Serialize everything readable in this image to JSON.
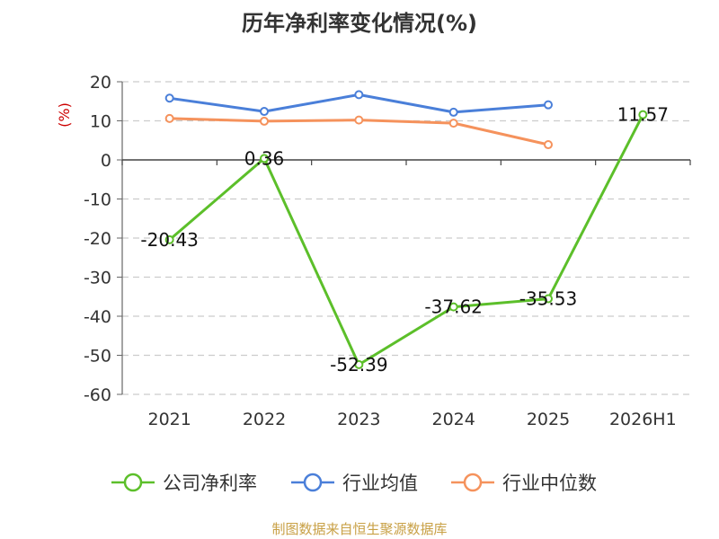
{
  "chart_data": {
    "type": "line",
    "title": "历年净利率变化情况(%)",
    "ylabel": "(%)",
    "xlabel": "",
    "categories": [
      "2021",
      "2022",
      "2023",
      "2024",
      "2025",
      "2026H1"
    ],
    "ylim": [
      -60,
      20
    ],
    "yticks": [
      20,
      10,
      0,
      -10,
      -20,
      -30,
      -40,
      -50,
      -60
    ],
    "grid": true,
    "legend_position": "bottom",
    "series": [
      {
        "name": "公司净利率",
        "color": "#5cbf2a",
        "values": [
          -20.43,
          0.36,
          -52.39,
          -37.62,
          -35.53,
          11.57
        ],
        "labels": [
          "-20.43",
          "0.36",
          "-52.39",
          "-37.62",
          "-35.53",
          "11.57"
        ]
      },
      {
        "name": "行业均值",
        "color": "#4a7fd9",
        "values": [
          15.8,
          12.4,
          16.7,
          12.2,
          14.1,
          null
        ]
      },
      {
        "name": "行业中位数",
        "color": "#f5925c",
        "values": [
          10.6,
          9.9,
          10.2,
          9.4,
          3.9,
          null
        ]
      }
    ]
  },
  "source": "制图数据来自恒生聚源数据库"
}
